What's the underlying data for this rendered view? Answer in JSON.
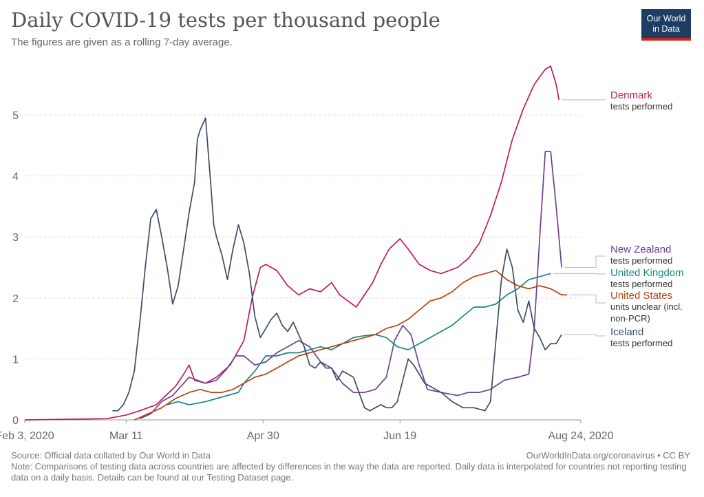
{
  "header": {
    "title": "Daily COVID-19 tests per thousand people",
    "subtitle": "The figures are given as a rolling 7-day average."
  },
  "logo": {
    "line1": "Our World",
    "line2": "in Data"
  },
  "footer": {
    "source": "Source: Official data collated by Our World in Data",
    "url": "OurWorldInData.org/coronavirus • CC BY",
    "note": "Note: Comparisons of testing data across countries are affected by differences in the way the data are reported. Daily data is interpolated for countries not reporting testing data on a daily basis. Details can be found at our Testing Dataset page."
  },
  "chart_data": {
    "type": "line",
    "xlabel": "",
    "ylabel": "",
    "x_unit": "days since Feb 3, 2020",
    "xlim": [
      0,
      203
    ],
    "ylim": [
      0,
      6
    ],
    "grid": true,
    "y_ticks": [
      "0",
      "1",
      "2",
      "3",
      "4",
      "5"
    ],
    "x_ticks": [
      {
        "day": 0,
        "label": "Feb 3, 2020"
      },
      {
        "day": 37,
        "label": "Mar 11"
      },
      {
        "day": 87,
        "label": "Apr 30"
      },
      {
        "day": 137,
        "label": "Jun 19"
      },
      {
        "day": 203,
        "label": "Aug 24, 2020"
      }
    ],
    "series": [
      {
        "name": "Denmark",
        "sublabel": [
          "tests performed"
        ],
        "color": "#c2185b",
        "points": [
          [
            0,
            0
          ],
          [
            30,
            0.02
          ],
          [
            37,
            0.08
          ],
          [
            42,
            0.15
          ],
          [
            48,
            0.25
          ],
          [
            55,
            0.55
          ],
          [
            58,
            0.75
          ],
          [
            60,
            0.9
          ],
          [
            62,
            0.65
          ],
          [
            66,
            0.6
          ],
          [
            70,
            0.7
          ],
          [
            75,
            0.9
          ],
          [
            80,
            1.3
          ],
          [
            83,
            2.0
          ],
          [
            86,
            2.5
          ],
          [
            88,
            2.55
          ],
          [
            92,
            2.45
          ],
          [
            96,
            2.2
          ],
          [
            100,
            2.05
          ],
          [
            104,
            2.15
          ],
          [
            108,
            2.1
          ],
          [
            112,
            2.25
          ],
          [
            115,
            2.05
          ],
          [
            118,
            1.95
          ],
          [
            121,
            1.85
          ],
          [
            124,
            2.05
          ],
          [
            127,
            2.25
          ],
          [
            130,
            2.55
          ],
          [
            133,
            2.8
          ],
          [
            137,
            2.97
          ],
          [
            140,
            2.8
          ],
          [
            144,
            2.55
          ],
          [
            148,
            2.45
          ],
          [
            152,
            2.4
          ],
          [
            158,
            2.5
          ],
          [
            162,
            2.65
          ],
          [
            166,
            2.9
          ],
          [
            170,
            3.35
          ],
          [
            174,
            3.9
          ],
          [
            178,
            4.6
          ],
          [
            182,
            5.1
          ],
          [
            186,
            5.5
          ],
          [
            190,
            5.75
          ],
          [
            192,
            5.8
          ],
          [
            194,
            5.5
          ],
          [
            195,
            5.25
          ]
        ]
      },
      {
        "name": "New Zealand",
        "sublabel": [
          "tests performed"
        ],
        "color": "#6d3e91",
        "points": [
          [
            42,
            0.02
          ],
          [
            46,
            0.1
          ],
          [
            50,
            0.3
          ],
          [
            54,
            0.4
          ],
          [
            57,
            0.55
          ],
          [
            60,
            0.7
          ],
          [
            63,
            0.65
          ],
          [
            66,
            0.6
          ],
          [
            70,
            0.65
          ],
          [
            74,
            0.85
          ],
          [
            77,
            1.05
          ],
          [
            80,
            1.05
          ],
          [
            84,
            0.9
          ],
          [
            88,
            0.95
          ],
          [
            92,
            1.1
          ],
          [
            96,
            1.2
          ],
          [
            100,
            1.3
          ],
          [
            104,
            1.2
          ],
          [
            108,
            0.95
          ],
          [
            112,
            0.85
          ],
          [
            116,
            0.6
          ],
          [
            120,
            0.45
          ],
          [
            124,
            0.45
          ],
          [
            128,
            0.5
          ],
          [
            132,
            0.7
          ],
          [
            135,
            1.3
          ],
          [
            138,
            1.55
          ],
          [
            141,
            1.4
          ],
          [
            144,
            0.9
          ],
          [
            147,
            0.5
          ],
          [
            152,
            0.45
          ],
          [
            158,
            0.4
          ],
          [
            162,
            0.45
          ],
          [
            166,
            0.45
          ],
          [
            170,
            0.5
          ],
          [
            175,
            0.65
          ],
          [
            180,
            0.7
          ],
          [
            184,
            0.75
          ],
          [
            186,
            1.5
          ],
          [
            188,
            3.0
          ],
          [
            190,
            4.4
          ],
          [
            192,
            4.4
          ],
          [
            194,
            3.5
          ],
          [
            196,
            2.5
          ]
        ]
      },
      {
        "name": "United Kingdom",
        "sublabel": [
          "tests performed"
        ],
        "color": "#18847e",
        "points": [
          [
            52,
            0.25
          ],
          [
            56,
            0.3
          ],
          [
            60,
            0.25
          ],
          [
            66,
            0.3
          ],
          [
            70,
            0.35
          ],
          [
            74,
            0.4
          ],
          [
            78,
            0.45
          ],
          [
            80,
            0.6
          ],
          [
            84,
            0.8
          ],
          [
            88,
            1.05
          ],
          [
            92,
            1.05
          ],
          [
            96,
            1.1
          ],
          [
            100,
            1.1
          ],
          [
            104,
            1.15
          ],
          [
            108,
            1.2
          ],
          [
            112,
            1.15
          ],
          [
            116,
            1.25
          ],
          [
            120,
            1.35
          ],
          [
            124,
            1.38
          ],
          [
            128,
            1.4
          ],
          [
            132,
            1.35
          ],
          [
            136,
            1.2
          ],
          [
            140,
            1.15
          ],
          [
            144,
            1.25
          ],
          [
            148,
            1.35
          ],
          [
            152,
            1.45
          ],
          [
            156,
            1.55
          ],
          [
            160,
            1.7
          ],
          [
            164,
            1.85
          ],
          [
            168,
            1.85
          ],
          [
            172,
            1.9
          ],
          [
            176,
            2.05
          ],
          [
            180,
            2.15
          ],
          [
            184,
            2.3
          ],
          [
            188,
            2.35
          ],
          [
            192,
            2.4
          ]
        ]
      },
      {
        "name": "United States",
        "sublabel": [
          "units unclear (incl.",
          "non-PCR)"
        ],
        "color": "#b7410e",
        "points": [
          [
            40,
            0.0
          ],
          [
            45,
            0.1
          ],
          [
            50,
            0.2
          ],
          [
            55,
            0.35
          ],
          [
            60,
            0.45
          ],
          [
            64,
            0.5
          ],
          [
            68,
            0.45
          ],
          [
            72,
            0.45
          ],
          [
            76,
            0.5
          ],
          [
            80,
            0.6
          ],
          [
            84,
            0.7
          ],
          [
            88,
            0.75
          ],
          [
            92,
            0.85
          ],
          [
            96,
            0.95
          ],
          [
            100,
            1.05
          ],
          [
            104,
            1.1
          ],
          [
            108,
            1.15
          ],
          [
            112,
            1.2
          ],
          [
            116,
            1.25
          ],
          [
            120,
            1.3
          ],
          [
            124,
            1.35
          ],
          [
            128,
            1.4
          ],
          [
            132,
            1.5
          ],
          [
            136,
            1.55
          ],
          [
            140,
            1.65
          ],
          [
            144,
            1.8
          ],
          [
            148,
            1.95
          ],
          [
            152,
            2.0
          ],
          [
            156,
            2.1
          ],
          [
            160,
            2.25
          ],
          [
            164,
            2.35
          ],
          [
            168,
            2.4
          ],
          [
            172,
            2.45
          ],
          [
            176,
            2.3
          ],
          [
            180,
            2.2
          ],
          [
            184,
            2.15
          ],
          [
            188,
            2.2
          ],
          [
            192,
            2.15
          ],
          [
            196,
            2.05
          ],
          [
            198,
            2.05
          ]
        ]
      },
      {
        "name": "Iceland",
        "sublabel": [
          "tests performed"
        ],
        "color": "#3c4b63",
        "points": [
          [
            32,
            0.15
          ],
          [
            34,
            0.15
          ],
          [
            36,
            0.25
          ],
          [
            38,
            0.45
          ],
          [
            40,
            0.8
          ],
          [
            42,
            1.6
          ],
          [
            44,
            2.5
          ],
          [
            46,
            3.3
          ],
          [
            48,
            3.45
          ],
          [
            50,
            3.0
          ],
          [
            52,
            2.5
          ],
          [
            54,
            1.9
          ],
          [
            56,
            2.2
          ],
          [
            58,
            2.8
          ],
          [
            60,
            3.4
          ],
          [
            62,
            3.9
          ],
          [
            63,
            4.6
          ],
          [
            64,
            4.75
          ],
          [
            66,
            4.95
          ],
          [
            68,
            3.8
          ],
          [
            69,
            3.2
          ],
          [
            70,
            3.0
          ],
          [
            72,
            2.7
          ],
          [
            74,
            2.3
          ],
          [
            76,
            2.8
          ],
          [
            78,
            3.2
          ],
          [
            80,
            2.9
          ],
          [
            82,
            2.4
          ],
          [
            84,
            1.7
          ],
          [
            86,
            1.35
          ],
          [
            88,
            1.5
          ],
          [
            90,
            1.65
          ],
          [
            92,
            1.75
          ],
          [
            94,
            1.55
          ],
          [
            96,
            1.45
          ],
          [
            98,
            1.6
          ],
          [
            100,
            1.4
          ],
          [
            102,
            1.2
          ],
          [
            104,
            0.9
          ],
          [
            106,
            0.85
          ],
          [
            108,
            0.95
          ],
          [
            110,
            0.85
          ],
          [
            112,
            0.85
          ],
          [
            114,
            0.65
          ],
          [
            116,
            0.8
          ],
          [
            118,
            0.75
          ],
          [
            120,
            0.7
          ],
          [
            122,
            0.45
          ],
          [
            124,
            0.2
          ],
          [
            126,
            0.15
          ],
          [
            128,
            0.2
          ],
          [
            130,
            0.25
          ],
          [
            132,
            0.2
          ],
          [
            134,
            0.2
          ],
          [
            136,
            0.3
          ],
          [
            138,
            0.65
          ],
          [
            140,
            1.0
          ],
          [
            142,
            0.9
          ],
          [
            144,
            0.75
          ],
          [
            146,
            0.6
          ],
          [
            148,
            0.55
          ],
          [
            152,
            0.45
          ],
          [
            156,
            0.3
          ],
          [
            160,
            0.2
          ],
          [
            164,
            0.2
          ],
          [
            168,
            0.15
          ],
          [
            170,
            0.3
          ],
          [
            172,
            1.3
          ],
          [
            174,
            2.3
          ],
          [
            176,
            2.8
          ],
          [
            178,
            2.5
          ],
          [
            180,
            1.8
          ],
          [
            182,
            1.6
          ],
          [
            184,
            1.95
          ],
          [
            186,
            1.5
          ],
          [
            188,
            1.35
          ],
          [
            190,
            1.15
          ],
          [
            192,
            1.25
          ],
          [
            194,
            1.25
          ],
          [
            196,
            1.4
          ]
        ]
      }
    ]
  }
}
